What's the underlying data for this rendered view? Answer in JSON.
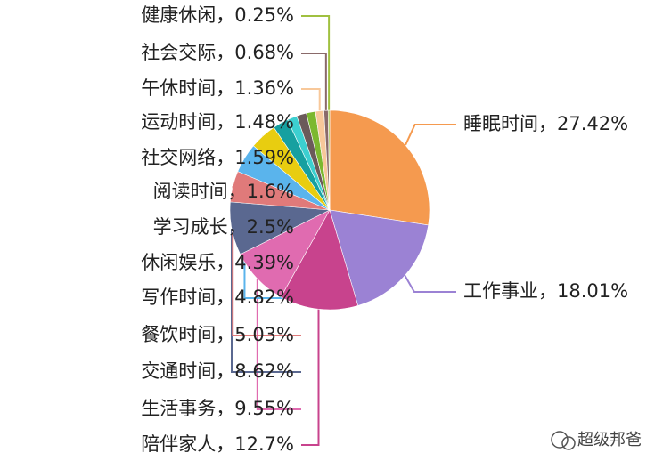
{
  "chart_data": {
    "type": "pie",
    "categories": [
      "睡眠时间",
      "工作事业",
      "陪伴家人",
      "生活事务",
      "交通时间",
      "餐饮时间",
      "写作时间",
      "休闲娱乐",
      "学习成长",
      "阅读时间",
      "社交网络",
      "运动时间",
      "午休时间",
      "社会交际",
      "健康休闲"
    ],
    "values": [
      27.42,
      18.01,
      12.7,
      9.55,
      8.62,
      5.03,
      4.82,
      4.39,
      2.5,
      1.6,
      1.59,
      1.48,
      1.36,
      0.68,
      0.25
    ],
    "value_labels": [
      "，27.42%",
      "，18.01%",
      "，12.7%",
      "，9.55%",
      "，8.62%",
      "，5.03%",
      "，4.82%",
      "，4.39%",
      "，2.5%",
      "，1.6%",
      "，1.59%",
      "，1.48%",
      "，1.36%",
      "，0.68%",
      "，0.25%"
    ],
    "colors": [
      "#f59a4f",
      "#9b82d4",
      "#c8438d",
      "#e06bb0",
      "#5a6890",
      "#e07a7a",
      "#5ab4ec",
      "#e8cd10",
      "#16a0a0",
      "#3ccfd0",
      "#6b5a5a",
      "#7cb82f",
      "#f8c89a",
      "#8a6a6a",
      "#a0c040"
    ],
    "watermark": "超级邦爸"
  }
}
